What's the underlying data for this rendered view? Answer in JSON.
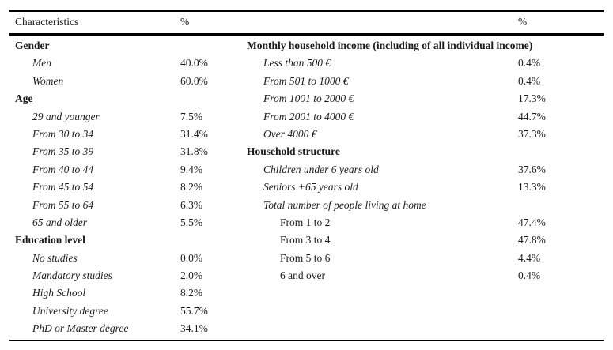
{
  "table": {
    "header": {
      "characteristics": "Characteristics",
      "percent_left": "%",
      "percent_right": "%"
    },
    "rows": [
      {
        "left": {
          "label": "Gender",
          "kind": "section",
          "value": ""
        },
        "right": {
          "label": "Monthly household income (including of all individual income)",
          "kind": "section",
          "value": ""
        }
      },
      {
        "left": {
          "label": "Men",
          "kind": "item",
          "value": "40.0%"
        },
        "right": {
          "label": "Less than 500 €",
          "kind": "item",
          "value": "0.4%"
        }
      },
      {
        "left": {
          "label": "Women",
          "kind": "item",
          "value": "60.0%"
        },
        "right": {
          "label": "From 501 to 1000 €",
          "kind": "item",
          "value": "0.4%"
        }
      },
      {
        "left": {
          "label": "Age",
          "kind": "section",
          "value": ""
        },
        "right": {
          "label": "From 1001 to 2000 €",
          "kind": "item",
          "value": "17.3%"
        }
      },
      {
        "left": {
          "label": "29 and younger",
          "kind": "item",
          "value": "7.5%"
        },
        "right": {
          "label": "From 2001 to 4000 €",
          "kind": "item",
          "value": "44.7%"
        }
      },
      {
        "left": {
          "label": "From 30 to 34",
          "kind": "item",
          "value": "31.4%"
        },
        "right": {
          "label": "Over 4000 €",
          "kind": "item",
          "value": "37.3%"
        }
      },
      {
        "left": {
          "label": "From 35 to 39",
          "kind": "item",
          "value": "31.8%"
        },
        "right": {
          "label": "Household structure",
          "kind": "section",
          "value": ""
        }
      },
      {
        "left": {
          "label": "From 40 to 44",
          "kind": "item",
          "value": "9.4%"
        },
        "right": {
          "label": "Children under 6 years old",
          "kind": "item",
          "value": "37.6%"
        }
      },
      {
        "left": {
          "label": "From 45 to 54",
          "kind": "item",
          "value": "8.2%"
        },
        "right": {
          "label": "Seniors +65 years old",
          "kind": "item",
          "value": "13.3%"
        }
      },
      {
        "left": {
          "label": "From 55 to 64",
          "kind": "item",
          "value": "6.3%"
        },
        "right": {
          "label": "Total number of people living at home",
          "kind": "item",
          "value": ""
        }
      },
      {
        "left": {
          "label": "65 and older",
          "kind": "item",
          "value": "5.5%"
        },
        "right": {
          "label": "From 1 to 2",
          "kind": "subitem",
          "value": "47.4%"
        }
      },
      {
        "left": {
          "label": "Education level",
          "kind": "section",
          "value": ""
        },
        "right": {
          "label": "From 3 to 4",
          "kind": "subitem",
          "value": "47.8%"
        }
      },
      {
        "left": {
          "label": "No studies",
          "kind": "item",
          "value": "0.0%"
        },
        "right": {
          "label": "From 5 to 6",
          "kind": "subitem",
          "value": "4.4%"
        }
      },
      {
        "left": {
          "label": "Mandatory studies",
          "kind": "item",
          "value": "2.0%"
        },
        "right": {
          "label": "6 and over",
          "kind": "subitem",
          "value": "0.4%"
        }
      },
      {
        "left": {
          "label": "High School",
          "kind": "item",
          "value": "8.2%"
        },
        "right": {
          "label": "",
          "kind": "",
          "value": ""
        }
      },
      {
        "left": {
          "label": "University degree",
          "kind": "item",
          "value": "55.7%"
        },
        "right": {
          "label": "",
          "kind": "",
          "value": ""
        }
      },
      {
        "left": {
          "label": "PhD or Master degree",
          "kind": "item",
          "value": "34.1%"
        },
        "right": {
          "label": "",
          "kind": "",
          "value": ""
        }
      }
    ]
  }
}
